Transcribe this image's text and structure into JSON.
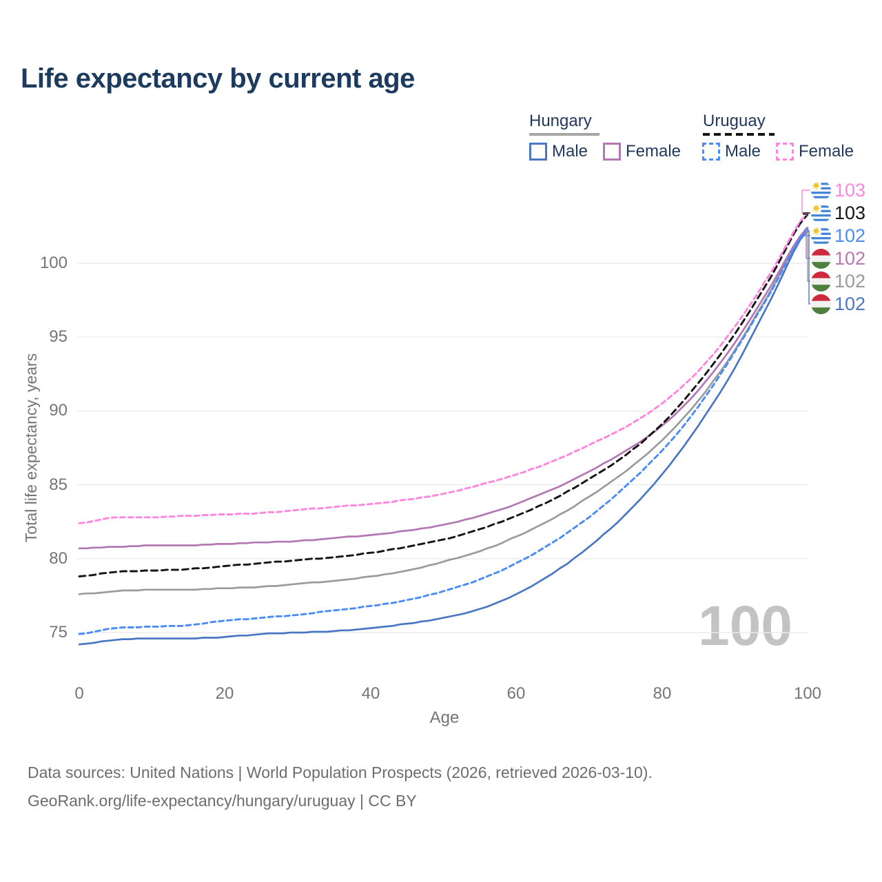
{
  "title": "Life expectancy by current age",
  "legend": {
    "groups": [
      {
        "name": "Hungary",
        "line_style": "solid",
        "underline_color": "#a6a6a6",
        "items": [
          {
            "label": "Male",
            "color": "#4a77c4"
          },
          {
            "label": "Female",
            "color": "#b377b3"
          }
        ]
      },
      {
        "name": "Uruguay",
        "line_style": "dashed",
        "underline_color": "#141414",
        "items": [
          {
            "label": "Male",
            "color": "#4a8cf7"
          },
          {
            "label": "Female",
            "color": "#ff85e1"
          }
        ]
      }
    ]
  },
  "chart_data": {
    "type": "line",
    "title": "Life expectancy by current age",
    "xlabel": "Age",
    "ylabel": "Total life expectancy, years",
    "x": [
      0,
      5,
      10,
      15,
      20,
      25,
      30,
      35,
      40,
      45,
      50,
      55,
      60,
      65,
      70,
      75,
      80,
      85,
      90,
      95,
      100
    ],
    "xticks": [
      0,
      20,
      40,
      60,
      80,
      100
    ],
    "yticks": [
      75,
      80,
      85,
      90,
      95,
      100
    ],
    "xlim": [
      0,
      100
    ],
    "ylim": [
      74,
      104
    ],
    "grid": "horizontal",
    "legend_position": "top-right",
    "series": [
      {
        "name": "Uruguay Female",
        "country": "uruguay",
        "sex": "female",
        "color": "#ff85e1",
        "dash": "7 5",
        "end_label": "103",
        "values": [
          82.4,
          82.8,
          82.8,
          82.9,
          83.0,
          83.1,
          83.3,
          83.5,
          83.7,
          84.0,
          84.4,
          85.0,
          85.7,
          86.6,
          87.7,
          88.9,
          90.5,
          92.7,
          95.7,
          99.4,
          103.4
        ]
      },
      {
        "name": "Uruguay",
        "country": "uruguay",
        "sex": "total",
        "color": "#141414",
        "dash": "9 6",
        "end_label": "103",
        "values": [
          78.8,
          79.1,
          79.2,
          79.3,
          79.5,
          79.7,
          79.9,
          80.1,
          80.4,
          80.8,
          81.3,
          82.0,
          82.9,
          84.0,
          85.4,
          87.0,
          89.1,
          91.9,
          95.2,
          99.1,
          103.3
        ]
      },
      {
        "name": "Uruguay Male",
        "country": "uruguay",
        "sex": "male",
        "color": "#4a8cf7",
        "dash": "7 5",
        "end_label": "102",
        "values": [
          74.9,
          75.3,
          75.4,
          75.5,
          75.8,
          76.0,
          76.2,
          76.5,
          76.8,
          77.2,
          77.8,
          78.6,
          79.7,
          81.1,
          82.8,
          84.9,
          87.3,
          90.3,
          94.0,
          98.1,
          102.3
        ]
      },
      {
        "name": "Hungary Female",
        "country": "hungary",
        "sex": "female",
        "color": "#b377b3",
        "dash": null,
        "end_label": "102",
        "values": [
          80.7,
          80.8,
          80.9,
          80.9,
          81.0,
          81.1,
          81.2,
          81.4,
          81.6,
          81.9,
          82.3,
          82.9,
          83.7,
          84.7,
          85.9,
          87.3,
          89.0,
          91.4,
          94.6,
          98.5,
          102.4
        ]
      },
      {
        "name": "Hungary",
        "country": "hungary",
        "sex": "total",
        "color": "#9b9b9b",
        "dash": null,
        "end_label": "102",
        "values": [
          77.6,
          77.8,
          77.9,
          77.9,
          78.0,
          78.1,
          78.3,
          78.5,
          78.8,
          79.2,
          79.8,
          80.5,
          81.5,
          82.7,
          84.2,
          85.9,
          88.0,
          90.7,
          94.1,
          98.2,
          102.3
        ]
      },
      {
        "name": "Hungary Male",
        "country": "hungary",
        "sex": "male",
        "color": "#4a77c4",
        "dash": null,
        "end_label": "102",
        "values": [
          74.2,
          74.5,
          74.6,
          74.6,
          74.7,
          74.9,
          75.0,
          75.1,
          75.3,
          75.6,
          76.0,
          76.6,
          77.6,
          79.0,
          80.8,
          83.0,
          85.7,
          89.0,
          92.9,
          97.6,
          102.2
        ]
      }
    ]
  },
  "watermark": "100",
  "footer": {
    "line1": "Data sources: United Nations | World Population Prospects (2026, retrieved 2026-03-10).",
    "line2": "GeoRank.org/life-expectancy/hungary/uruguay | CC BY"
  }
}
